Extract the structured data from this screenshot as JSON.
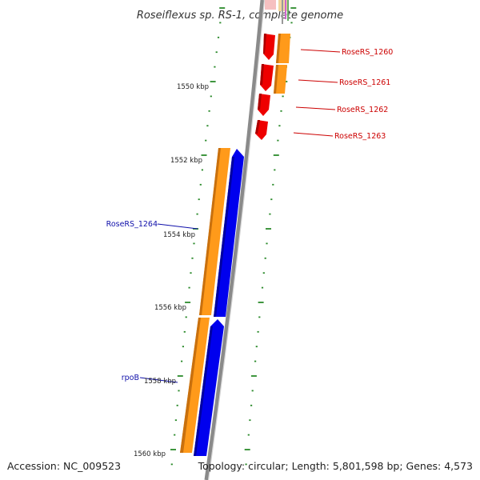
{
  "title": "Roseiflexus sp. RS-1, complete genome",
  "footer": {
    "accession": "Accession: NC_009523",
    "topology": "Topology: circular; Length: 5,801,598 bp; Genes: 4,573"
  },
  "colors": {
    "background": "#ffffff",
    "backbone": "#8a8a8a",
    "tick": "#2a8a2a",
    "gene_red": "#ee0000",
    "gene_orange": "#ff9a1a",
    "gene_blue": "#0000ee",
    "label_red": "#cc0000",
    "label_blue": "#1010aa"
  },
  "kbp_labels": [
    "1550 kbp",
    "1552 kbp",
    "1554 kbp",
    "1556 kbp",
    "1558 kbp",
    "1560 kbp"
  ],
  "right_genes": [
    {
      "label": "RoseRS_1260",
      "color": "red"
    },
    {
      "label": "RoseRS_1261",
      "color": "red"
    },
    {
      "label": "RoseRS_1262",
      "color": "red"
    },
    {
      "label": "RoseRS_1263",
      "color": "red"
    }
  ],
  "left_genes": [
    {
      "label": "RoseRS_1264",
      "color": "blue"
    },
    {
      "label": "rpoB",
      "color": "blue"
    }
  ]
}
